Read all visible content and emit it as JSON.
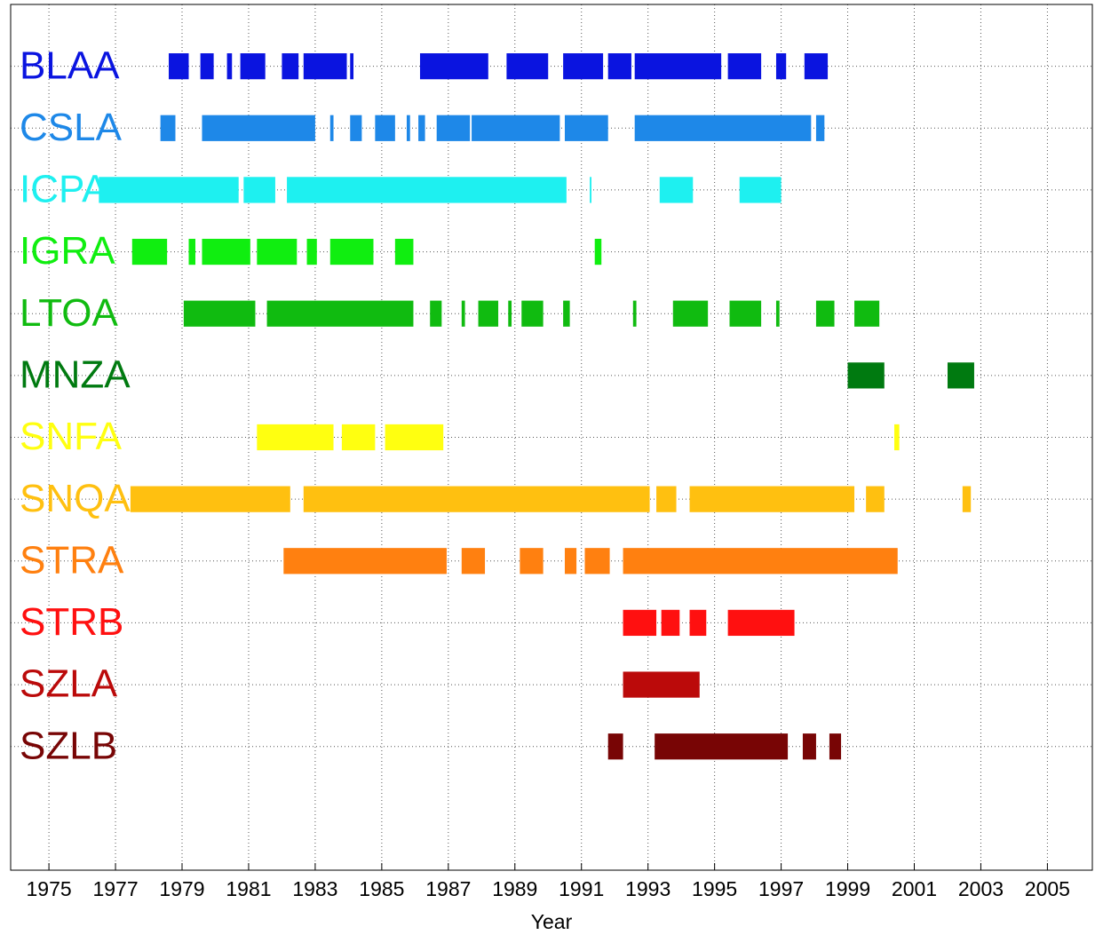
{
  "chart_data": {
    "type": "timeline",
    "xlabel": "Year",
    "xlim": [
      1973.85,
      2006.35
    ],
    "xticks": [
      1975,
      1977,
      1979,
      1981,
      1983,
      1985,
      1987,
      1989,
      1991,
      1993,
      1995,
      1997,
      1999,
      2001,
      2003,
      2005
    ],
    "grid": true,
    "series": [
      {
        "name": "BLAA",
        "color": "#0a14e0",
        "segments": [
          [
            1978.6,
            1979.2
          ],
          [
            1979.55,
            1979.95
          ],
          [
            1980.35,
            1980.5
          ],
          [
            1980.75,
            1981.5
          ],
          [
            1982.0,
            1982.5
          ],
          [
            1982.65,
            1983.95
          ],
          [
            1984.05,
            1984.15
          ],
          [
            1986.15,
            1988.2
          ],
          [
            1988.75,
            1990.0
          ],
          [
            1990.45,
            1991.65
          ],
          [
            1991.8,
            1992.5
          ],
          [
            1992.6,
            1995.2
          ],
          [
            1995.4,
            1996.4
          ],
          [
            1996.85,
            1997.15
          ],
          [
            1997.7,
            1998.4
          ]
        ]
      },
      {
        "name": "CSLA",
        "color": "#1e88e8",
        "segments": [
          [
            1978.35,
            1978.8
          ],
          [
            1979.6,
            1983.0
          ],
          [
            1983.45,
            1983.55
          ],
          [
            1984.05,
            1984.4
          ],
          [
            1984.8,
            1985.4
          ],
          [
            1985.75,
            1985.85
          ],
          [
            1986.1,
            1986.3
          ],
          [
            1986.65,
            1987.65
          ],
          [
            1987.7,
            1990.35
          ],
          [
            1990.5,
            1991.8
          ],
          [
            1992.6,
            1997.9
          ],
          [
            1998.05,
            1998.3
          ]
        ]
      },
      {
        "name": "ICPA",
        "color": "#1ef0f0",
        "segments": [
          [
            1976.5,
            1980.7
          ],
          [
            1980.85,
            1981.8
          ],
          [
            1982.15,
            1990.55
          ],
          [
            1991.25,
            1991.3
          ],
          [
            1993.35,
            1994.35
          ],
          [
            1995.75,
            1997.0
          ]
        ]
      },
      {
        "name": "IGRA",
        "color": "#10ee10",
        "segments": [
          [
            1977.5,
            1978.55
          ],
          [
            1979.2,
            1979.4
          ],
          [
            1979.6,
            1981.05
          ],
          [
            1981.25,
            1982.45
          ],
          [
            1982.75,
            1983.05
          ],
          [
            1983.45,
            1984.75
          ],
          [
            1985.4,
            1985.95
          ],
          [
            1991.4,
            1991.6
          ]
        ]
      },
      {
        "name": "LTOA",
        "color": "#10bb10",
        "segments": [
          [
            1979.05,
            1981.2
          ],
          [
            1981.55,
            1985.95
          ],
          [
            1986.45,
            1986.8
          ],
          [
            1987.4,
            1987.5
          ],
          [
            1987.9,
            1988.5
          ],
          [
            1988.8,
            1988.9
          ],
          [
            1989.2,
            1989.85
          ],
          [
            1990.45,
            1990.65
          ],
          [
            1992.55,
            1992.65
          ],
          [
            1993.75,
            1994.8
          ],
          [
            1995.45,
            1996.4
          ],
          [
            1996.85,
            1996.95
          ],
          [
            1998.05,
            1998.6
          ],
          [
            1999.2,
            1999.95
          ]
        ]
      },
      {
        "name": "MNZA",
        "color": "#007a10",
        "segments": [
          [
            1999.0,
            2000.1
          ],
          [
            2002.0,
            2002.8
          ]
        ]
      },
      {
        "name": "SNFA",
        "color": "#ffff10",
        "segments": [
          [
            1981.25,
            1983.55
          ],
          [
            1983.8,
            1984.8
          ],
          [
            1985.1,
            1986.85
          ],
          [
            2000.4,
            2000.55
          ]
        ]
      },
      {
        "name": "SNQA",
        "color": "#ffc010",
        "segments": [
          [
            1977.45,
            1982.25
          ],
          [
            1982.65,
            1993.05
          ],
          [
            1993.25,
            1993.85
          ],
          [
            1994.25,
            1999.2
          ],
          [
            1999.55,
            2000.1
          ],
          [
            2002.45,
            2002.7
          ]
        ]
      },
      {
        "name": "STRA",
        "color": "#ff8010",
        "segments": [
          [
            1982.05,
            1986.95
          ],
          [
            1987.4,
            1988.1
          ],
          [
            1989.15,
            1989.85
          ],
          [
            1990.5,
            1990.85
          ],
          [
            1991.1,
            1991.85
          ],
          [
            1992.25,
            2000.5
          ]
        ]
      },
      {
        "name": "STRB",
        "color": "#ff1010",
        "segments": [
          [
            1992.25,
            1993.25
          ],
          [
            1993.4,
            1993.95
          ],
          [
            1994.25,
            1994.75
          ],
          [
            1995.4,
            1997.4
          ]
        ]
      },
      {
        "name": "SZLA",
        "color": "#bb0a0a",
        "segments": [
          [
            1992.25,
            1994.55
          ]
        ]
      },
      {
        "name": "SZLB",
        "color": "#780505",
        "segments": [
          [
            1991.8,
            1992.25
          ],
          [
            1993.2,
            1997.2
          ],
          [
            1997.65,
            1998.05
          ],
          [
            1998.45,
            1998.8
          ]
        ]
      }
    ]
  }
}
